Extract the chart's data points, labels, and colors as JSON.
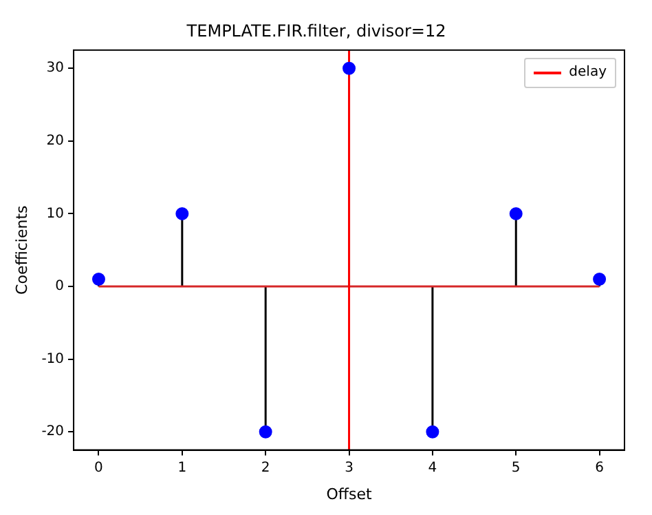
{
  "chart_data": {
    "type": "lollipop",
    "title": "TEMPLATE.FIR.filter, divisor=12",
    "xlabel": "Offset",
    "ylabel": "Coefficients",
    "x": [
      0,
      1,
      2,
      3,
      4,
      5,
      6
    ],
    "series": [
      {
        "values": [
          1,
          10,
          -20,
          30,
          -20,
          10,
          1
        ],
        "color": "#0000ff"
      },
      {
        "type": "line",
        "name": "delay",
        "x": [
          3,
          3
        ],
        "values": [
          -22.5,
          32.5
        ],
        "color": "#ff0000",
        "marker": "none"
      }
    ],
    "marker": "circle",
    "grid": false,
    "legend": "top right",
    "xlim": [
      -0.3,
      6.3
    ],
    "ylim": [
      -22.5,
      32.5
    ],
    "xticks": [
      0,
      1,
      2,
      3,
      4,
      5,
      6
    ],
    "yticks": [
      -20,
      -10,
      0,
      10,
      20,
      30
    ],
    "ref_lines": [
      {
        "axis": "y",
        "value": 0,
        "color": "#d62728"
      }
    ]
  }
}
